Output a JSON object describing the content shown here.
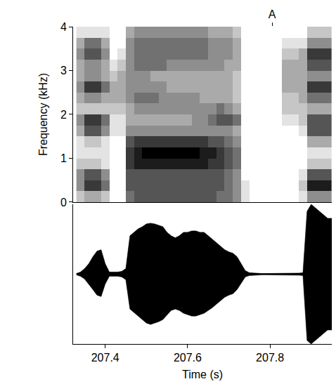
{
  "chart_data": [
    {
      "type": "heatmap",
      "ylabel": "Frequency (kHz)",
      "xlim": [
        207.322,
        207.95
      ],
      "ylim": [
        0,
        4
      ],
      "yticks": [
        0,
        1,
        2,
        3,
        4
      ],
      "tick_labels": "y",
      "annotations": [
        {
          "x": 207.805,
          "text": "A"
        }
      ],
      "color": "#000000",
      "zlim": [
        0,
        9
      ],
      "x": [
        207.34,
        207.36,
        207.38,
        207.4,
        207.42,
        207.44,
        207.46,
        207.48,
        207.5,
        207.52,
        207.54,
        207.56,
        207.58,
        207.6,
        207.62,
        207.64,
        207.66,
        207.68,
        207.7,
        207.72,
        207.74,
        207.76,
        207.78,
        207.8,
        207.82,
        207.84,
        207.86,
        207.88,
        207.9,
        207.92,
        207.94
      ],
      "y": [
        0.125,
        0.375,
        0.625,
        0.875,
        1.125,
        1.375,
        1.625,
        1.875,
        2.125,
        2.375,
        2.625,
        2.875,
        3.125,
        3.375,
        3.625,
        3.875
      ],
      "cells": [
        [
          2,
          4,
          4,
          2,
          1,
          1,
          3,
          4,
          2,
          3,
          4,
          3,
          3,
          4,
          3,
          1
        ],
        [
          3,
          7,
          6,
          2,
          1,
          2,
          6,
          7,
          2,
          4,
          7,
          4,
          4,
          6,
          5,
          1
        ],
        [
          3,
          7,
          6,
          2,
          1,
          2,
          6,
          7,
          2,
          4,
          7,
          4,
          4,
          6,
          5,
          1
        ],
        [
          2,
          5,
          4,
          1,
          1,
          1,
          4,
          5,
          2,
          3,
          5,
          3,
          3,
          4,
          3,
          1
        ],
        [
          0,
          0,
          0,
          0,
          0,
          0,
          1,
          1,
          2,
          3,
          3,
          2,
          1,
          0,
          0,
          0
        ],
        [
          0,
          0,
          0,
          0,
          0,
          0,
          1,
          1,
          2,
          3,
          3,
          3,
          2,
          1,
          0,
          0
        ],
        [
          5,
          6,
          6,
          7,
          7,
          6,
          4,
          3,
          3,
          4,
          4,
          4,
          4,
          4,
          4,
          3
        ],
        [
          6,
          6,
          6,
          8,
          8,
          7,
          4,
          3,
          4,
          5,
          4,
          4,
          5,
          5,
          5,
          4
        ],
        [
          6,
          6,
          6,
          8,
          9,
          7,
          4,
          3,
          4,
          5,
          4,
          4,
          5,
          5,
          5,
          4
        ],
        [
          6,
          6,
          6,
          8,
          9,
          7,
          4,
          3,
          4,
          5,
          4,
          3,
          5,
          5,
          5,
          4
        ],
        [
          6,
          6,
          6,
          8,
          9,
          7,
          4,
          3,
          4,
          4,
          4,
          3,
          5,
          5,
          5,
          4
        ],
        [
          6,
          6,
          6,
          8,
          9,
          7,
          4,
          3,
          4,
          4,
          3,
          3,
          4,
          5,
          5,
          4
        ],
        [
          6,
          6,
          6,
          8,
          9,
          7,
          4,
          3,
          4,
          4,
          3,
          3,
          4,
          5,
          5,
          4
        ],
        [
          6,
          6,
          6,
          8,
          9,
          7,
          4,
          3,
          4,
          4,
          3,
          3,
          4,
          5,
          5,
          4
        ],
        [
          6,
          6,
          6,
          8,
          9,
          7,
          4,
          4,
          4,
          4,
          3,
          3,
          4,
          5,
          5,
          4
        ],
        [
          6,
          6,
          6,
          8,
          8,
          7,
          4,
          4,
          4,
          3,
          3,
          3,
          4,
          5,
          5,
          4
        ],
        [
          6,
          6,
          6,
          7,
          8,
          6,
          4,
          5,
          4,
          3,
          3,
          3,
          4,
          4,
          4,
          3
        ],
        [
          5,
          6,
          6,
          7,
          7,
          6,
          4,
          6,
          5,
          3,
          3,
          3,
          4,
          4,
          4,
          3
        ],
        [
          5,
          5,
          5,
          6,
          6,
          5,
          4,
          6,
          4,
          3,
          3,
          3,
          3,
          4,
          4,
          3
        ],
        [
          4,
          4,
          4,
          5,
          5,
          4,
          3,
          5,
          3,
          2,
          2,
          2,
          3,
          3,
          3,
          2
        ],
        [
          1,
          1,
          0,
          0,
          0,
          0,
          0,
          0,
          0,
          0,
          0,
          0,
          0,
          0,
          0,
          0
        ],
        [
          0,
          0,
          0,
          0,
          0,
          0,
          0,
          0,
          0,
          0,
          0,
          0,
          0,
          0,
          0,
          0
        ],
        [
          0,
          0,
          0,
          0,
          0,
          0,
          0,
          0,
          0,
          0,
          0,
          0,
          0,
          0,
          0,
          0
        ],
        [
          0,
          0,
          0,
          0,
          0,
          0,
          0,
          0,
          0,
          0,
          0,
          0,
          0,
          0,
          0,
          0
        ],
        [
          0,
          0,
          0,
          0,
          0,
          0,
          0,
          0,
          0,
          0,
          0,
          0,
          0,
          0,
          0,
          0
        ],
        [
          0,
          0,
          0,
          0,
          0,
          0,
          0,
          1,
          2,
          2,
          3,
          3,
          3,
          2,
          1,
          0
        ],
        [
          0,
          0,
          0,
          0,
          0,
          0,
          0,
          1,
          2,
          2,
          3,
          3,
          3,
          2,
          1,
          0
        ],
        [
          1,
          2,
          1,
          0,
          0,
          0,
          1,
          2,
          2,
          3,
          3,
          3,
          3,
          3,
          1,
          0
        ],
        [
          4,
          8,
          6,
          2,
          1,
          3,
          6,
          6,
          3,
          5,
          7,
          4,
          6,
          7,
          4,
          2
        ],
        [
          4,
          8,
          6,
          2,
          1,
          3,
          6,
          6,
          3,
          5,
          7,
          4,
          6,
          7,
          4,
          2
        ],
        [
          4,
          8,
          6,
          2,
          1,
          3,
          6,
          6,
          3,
          5,
          7,
          4,
          6,
          7,
          4,
          2
        ]
      ]
    },
    {
      "type": "area",
      "xlabel": "Time (s)",
      "xlim": [
        207.322,
        207.95
      ],
      "ylim": [
        -1,
        1
      ],
      "xticks": [
        207.4,
        207.6,
        207.8
      ],
      "tick_labels": "x",
      "color": "#000000",
      "x": [
        207.33,
        207.34,
        207.35,
        207.36,
        207.37,
        207.38,
        207.39,
        207.4,
        207.41,
        207.42,
        207.43,
        207.44,
        207.45,
        207.46,
        207.47,
        207.48,
        207.49,
        207.5,
        207.51,
        207.52,
        207.53,
        207.54,
        207.55,
        207.56,
        207.57,
        207.58,
        207.59,
        207.6,
        207.61,
        207.62,
        207.63,
        207.64,
        207.65,
        207.66,
        207.67,
        207.68,
        207.69,
        207.7,
        207.71,
        207.72,
        207.73,
        207.74,
        207.75,
        207.76,
        207.77,
        207.78,
        207.79,
        207.8,
        207.81,
        207.82,
        207.83,
        207.84,
        207.85,
        207.86,
        207.87,
        207.88,
        207.89,
        207.9,
        207.91,
        207.92,
        207.93,
        207.94,
        207.95
      ],
      "upper": [
        0.01,
        0.03,
        0.08,
        0.15,
        0.25,
        0.33,
        0.35,
        0.15,
        0.03,
        0.03,
        0.03,
        0.04,
        0.08,
        0.55,
        0.6,
        0.65,
        0.68,
        0.72,
        0.73,
        0.72,
        0.7,
        0.68,
        0.6,
        0.55,
        0.52,
        0.55,
        0.6,
        0.6,
        0.62,
        0.62,
        0.6,
        0.6,
        0.55,
        0.5,
        0.45,
        0.4,
        0.35,
        0.32,
        0.3,
        0.25,
        0.15,
        0.05,
        0.02,
        0.015,
        0.01,
        0.01,
        0.01,
        0.01,
        0.01,
        0.01,
        0.015,
        0.015,
        0.015,
        0.015,
        0.015,
        0.02,
        0.9,
        1.0,
        0.95,
        0.9,
        0.85,
        0.8,
        0.8
      ],
      "lower": [
        -0.01,
        -0.03,
        -0.07,
        -0.14,
        -0.22,
        -0.3,
        -0.32,
        -0.14,
        -0.03,
        -0.03,
        -0.03,
        -0.04,
        -0.08,
        -0.5,
        -0.55,
        -0.6,
        -0.65,
        -0.7,
        -0.72,
        -0.7,
        -0.68,
        -0.65,
        -0.58,
        -0.52,
        -0.5,
        -0.52,
        -0.56,
        -0.58,
        -0.6,
        -0.6,
        -0.58,
        -0.56,
        -0.52,
        -0.48,
        -0.43,
        -0.38,
        -0.33,
        -0.3,
        -0.28,
        -0.22,
        -0.13,
        -0.04,
        -0.02,
        -0.015,
        -0.01,
        -0.01,
        -0.01,
        -0.01,
        -0.01,
        -0.01,
        -0.015,
        -0.015,
        -0.015,
        -0.015,
        -0.015,
        -0.02,
        -0.95,
        -1.0,
        -0.95,
        -0.9,
        -0.85,
        -0.8,
        -0.8
      ]
    }
  ]
}
